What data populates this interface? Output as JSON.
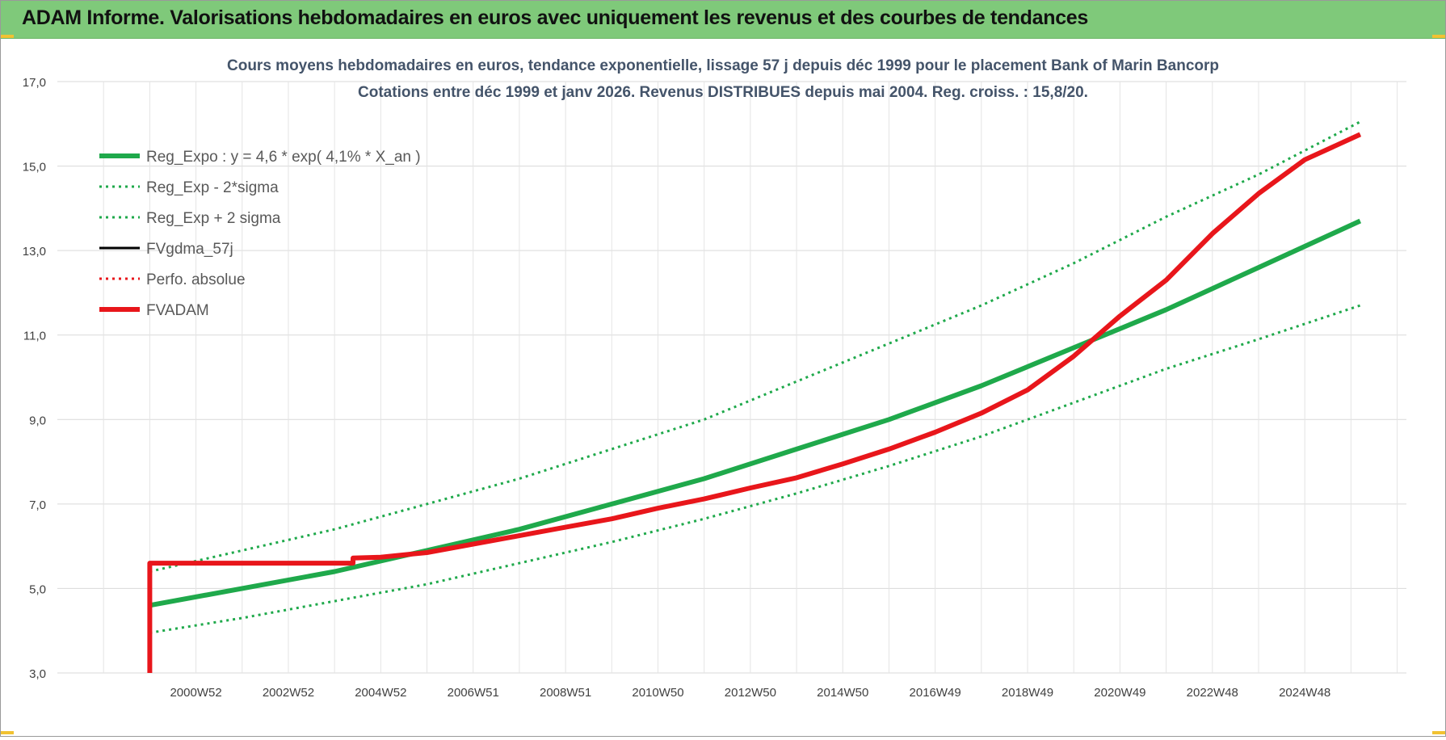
{
  "header": {
    "title": "ADAM Informe. Valorisations hebdomadaires en euros avec uniquement les revenus et des courbes de tendances"
  },
  "colors": {
    "banner": "#7fc97a",
    "trend_green": "#1fa94b",
    "fv_black": "#000000",
    "fvadam_red": "#e8161b",
    "perfo_red": "#e8161b"
  },
  "chart_data": {
    "type": "line",
    "title": "Cours moyens hebdomadaires en euros, tendance exponentielle, lissage 57 j depuis déc 1999 pour le placement Bank of Marin Bancorp",
    "subtitle": "Cotations entre déc 1999 et janv 2026. Revenus DISTRIBUES depuis mai 2004. Reg. croiss. : 15,8/20.",
    "xlabel": "",
    "ylabel": "",
    "ylim": [
      3.0,
      17.0
    ],
    "y_ticks": [
      "3,0",
      "5,0",
      "7,0",
      "9,0",
      "11,0",
      "13,0",
      "15,0",
      "17,0"
    ],
    "y_tick_values": [
      3,
      5,
      7,
      9,
      11,
      13,
      15,
      17
    ],
    "xlim": [
      1998.0,
      2027.2
    ],
    "x_ticks": [
      "2000W52",
      "2002W52",
      "2004W52",
      "2006W51",
      "2008W51",
      "2010W50",
      "2012W50",
      "2014W50",
      "2016W49",
      "2018W49",
      "2020W49",
      "2022W48",
      "2024W48"
    ],
    "x_tick_values": [
      2001,
      2003,
      2005,
      2007,
      2009,
      2011,
      2013,
      2015,
      2017,
      2019,
      2021,
      2023,
      2025
    ],
    "grid": true,
    "legend_position": "top-left",
    "series": [
      {
        "name": "Reg_Expo : y = 4,6 * exp( 4,1% *  X_an )",
        "style": "solid-thick",
        "color": "#1fa94b",
        "x": [
          2000.0,
          2002.0,
          2004.0,
          2006.0,
          2008.0,
          2010.0,
          2012.0,
          2014.0,
          2016.0,
          2018.0,
          2020.0,
          2022.0,
          2024.0,
          2026.2
        ],
        "values": [
          4.6,
          5.0,
          5.4,
          5.9,
          6.4,
          7.0,
          7.6,
          8.3,
          9.0,
          9.8,
          10.7,
          11.6,
          12.6,
          13.7
        ]
      },
      {
        "name": "Reg_Exp - 2*sigma",
        "style": "dotted",
        "color": "#1fa94b",
        "x": [
          2000.0,
          2002.0,
          2004.0,
          2006.0,
          2008.0,
          2010.0,
          2012.0,
          2014.0,
          2016.0,
          2018.0,
          2020.0,
          2022.0,
          2024.0,
          2026.2
        ],
        "values": [
          3.95,
          4.3,
          4.7,
          5.1,
          5.6,
          6.1,
          6.65,
          7.25,
          7.9,
          8.6,
          9.4,
          10.2,
          10.9,
          11.7
        ]
      },
      {
        "name": "Reg_Exp + 2 sigma",
        "style": "dotted",
        "color": "#1fa94b",
        "x": [
          2000.0,
          2002.0,
          2004.0,
          2006.0,
          2008.0,
          2010.0,
          2012.0,
          2014.0,
          2016.0,
          2018.0,
          2020.0,
          2022.0,
          2024.0,
          2026.2
        ],
        "values": [
          5.4,
          5.9,
          6.4,
          7.0,
          7.6,
          8.3,
          9.0,
          9.9,
          10.8,
          11.7,
          12.7,
          13.8,
          14.8,
          16.05
        ]
      },
      {
        "name": "FVgdma_57j",
        "style": "solid",
        "color": "#000000",
        "x": [
          2004.4,
          2005.0,
          2006.0,
          2007.0,
          2008.0,
          2009.0,
          2010.0,
          2011.0,
          2012.0,
          2013.0,
          2014.0,
          2015.0,
          2016.0,
          2017.0,
          2018.0,
          2019.0,
          2020.0,
          2021.0,
          2022.0,
          2023.0,
          2024.0,
          2025.0,
          2026.2
        ],
        "values": [
          5.72,
          5.74,
          5.85,
          6.05,
          6.25,
          6.45,
          6.65,
          6.9,
          7.12,
          7.38,
          7.62,
          7.95,
          8.3,
          8.7,
          9.15,
          9.7,
          10.5,
          11.45,
          12.3,
          13.4,
          14.35,
          15.15,
          15.75
        ]
      },
      {
        "name": "Perfo. absolue",
        "style": "dotted",
        "color": "#e8161b",
        "x": [
          2004.4,
          2005.0,
          2006.0,
          2007.0,
          2008.0,
          2009.0,
          2010.0,
          2011.0,
          2012.0,
          2013.0,
          2014.0,
          2015.0,
          2016.0,
          2017.0,
          2018.0,
          2019.0,
          2020.0,
          2021.0,
          2022.0,
          2023.0,
          2024.0,
          2025.0,
          2026.2
        ],
        "values": [
          5.72,
          5.74,
          5.85,
          6.05,
          6.25,
          6.45,
          6.65,
          6.9,
          7.12,
          7.38,
          7.62,
          7.95,
          8.3,
          8.7,
          9.15,
          9.7,
          10.5,
          11.45,
          12.3,
          13.4,
          14.35,
          15.15,
          15.75
        ]
      },
      {
        "name": "FVADAM",
        "style": "solid-thick",
        "color": "#e8161b",
        "x": [
          2000.0,
          2000.0,
          2004.4,
          2004.4,
          2005.0,
          2006.0,
          2007.0,
          2008.0,
          2009.0,
          2010.0,
          2011.0,
          2012.0,
          2013.0,
          2014.0,
          2015.0,
          2016.0,
          2017.0,
          2018.0,
          2019.0,
          2020.0,
          2021.0,
          2022.0,
          2023.0,
          2024.0,
          2025.0,
          2026.2
        ],
        "values": [
          3.0,
          5.6,
          5.6,
          5.72,
          5.74,
          5.85,
          6.05,
          6.25,
          6.45,
          6.65,
          6.9,
          7.12,
          7.38,
          7.62,
          7.95,
          8.3,
          8.7,
          9.15,
          9.7,
          10.5,
          11.45,
          12.3,
          13.4,
          14.35,
          15.15,
          15.75
        ]
      }
    ]
  }
}
